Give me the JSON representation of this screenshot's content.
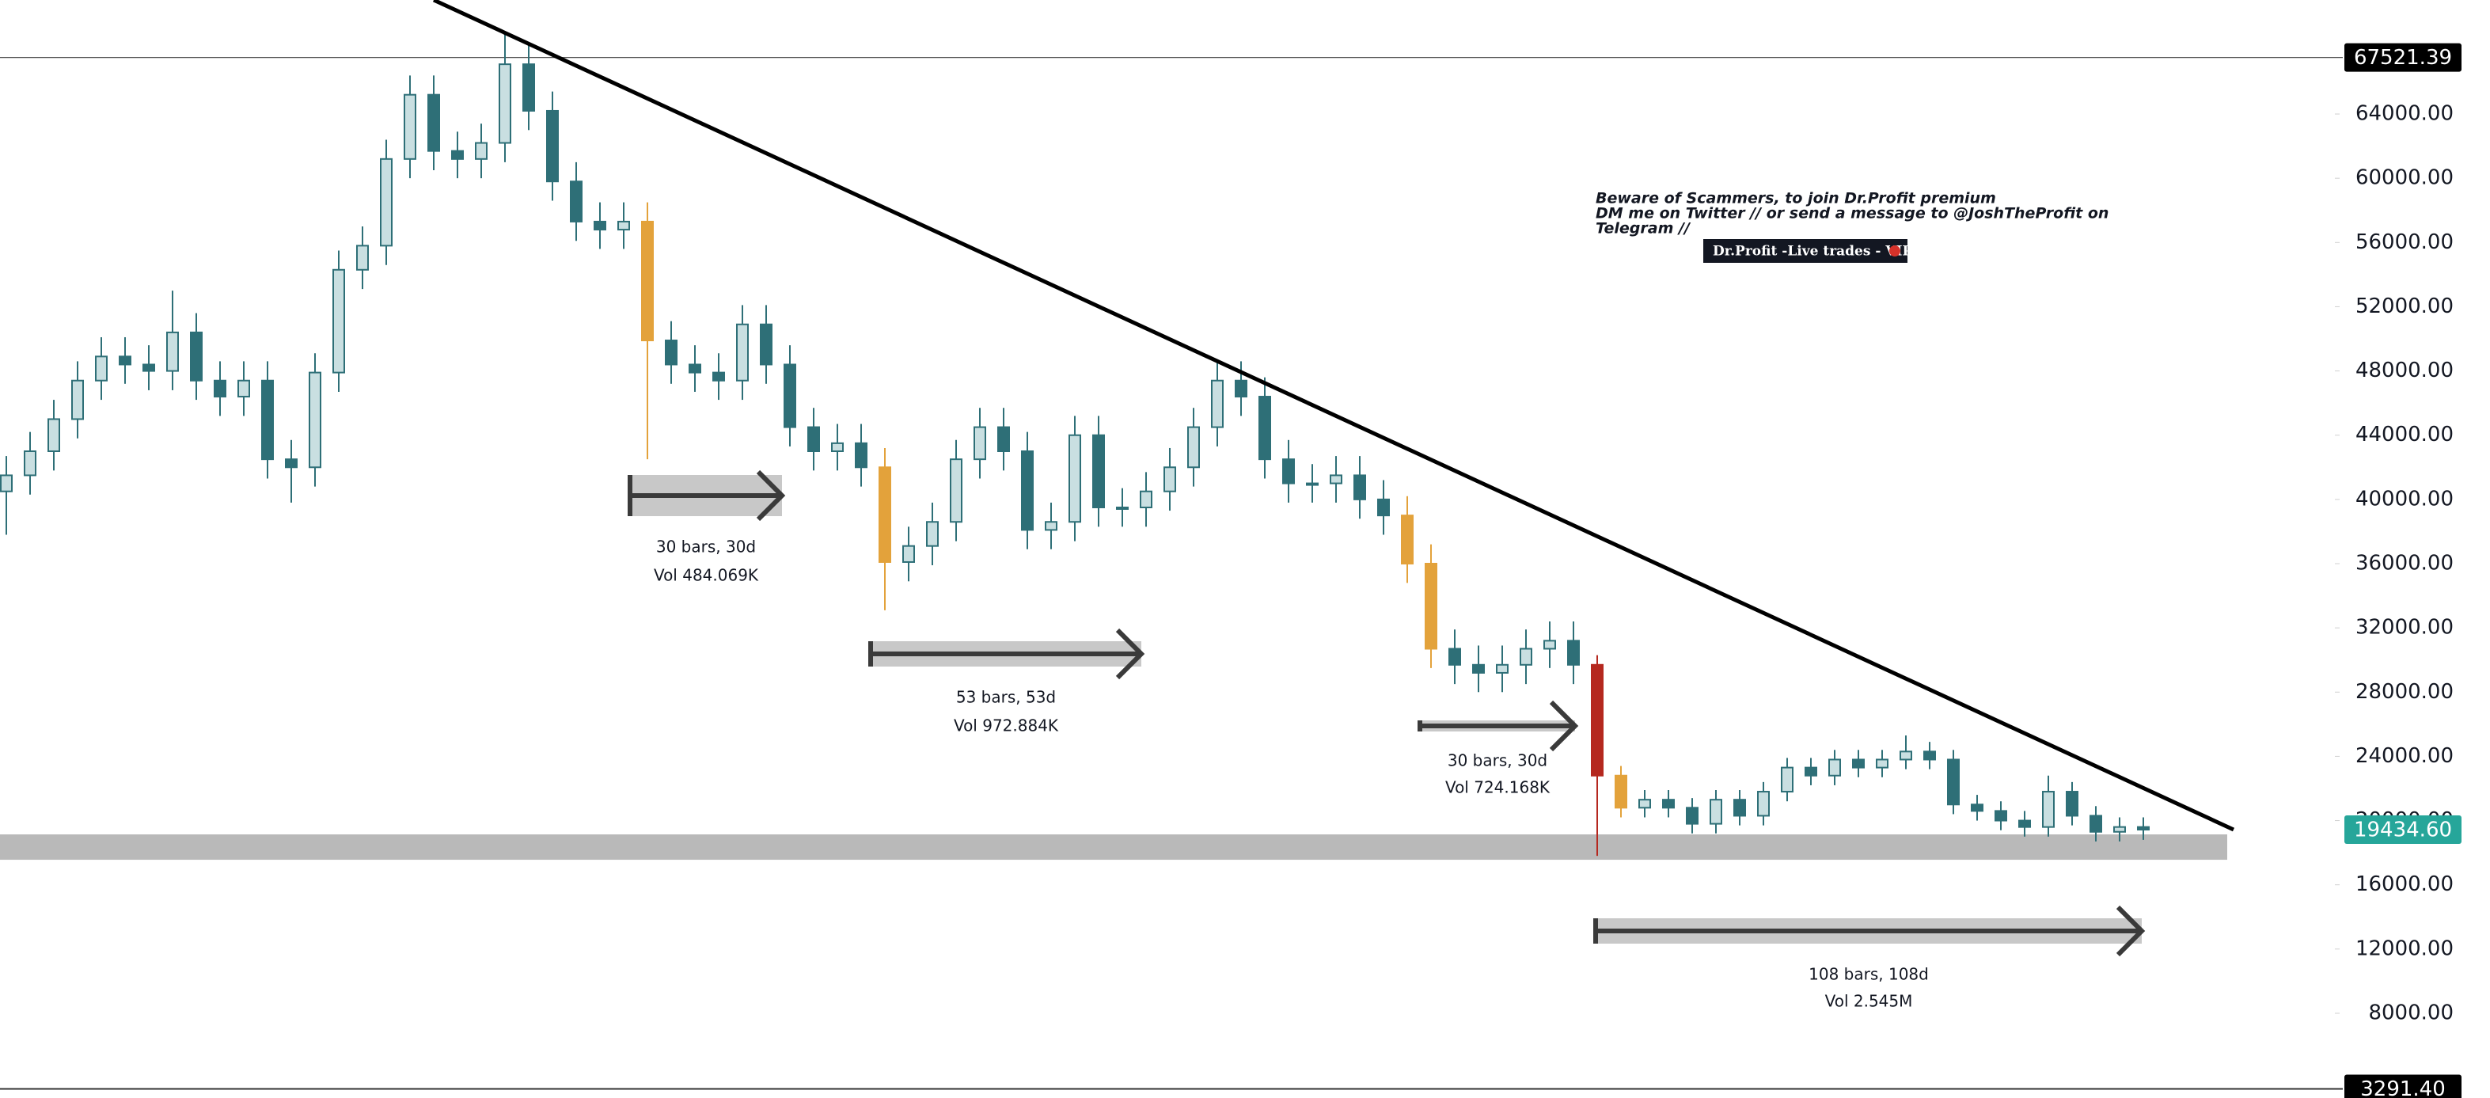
{
  "chart_data": {
    "type": "candlestick",
    "open": [
      40500,
      41500,
      43000,
      45000,
      47400,
      48900,
      48400,
      48000,
      50400,
      47400,
      46400,
      47400,
      42500,
      42000,
      47900,
      54300,
      55800,
      61200,
      65200,
      61700,
      61200,
      62200,
      67100,
      64200,
      59800,
      57300,
      56800,
      57300,
      49900,
      48400,
      47900,
      47400,
      50900,
      48400,
      44500,
      43000,
      43500,
      42000,
      36100,
      37100,
      38600,
      42500,
      44500,
      43000,
      38100,
      38600,
      44000,
      39500,
      39500,
      40500,
      42000,
      44500,
      47400,
      46400,
      42500,
      41000,
      41000,
      41500,
      40000,
      39000,
      36000,
      30700,
      29700,
      29200,
      29700,
      30700,
      31200,
      29700,
      22800,
      20800,
      21300,
      20800,
      19800,
      21300,
      20300,
      21800,
      23300,
      22800,
      23800,
      23300,
      23800,
      24300,
      23800,
      21000,
      20600,
      20000,
      19600,
      21800,
      20300,
      19300,
      19600
    ],
    "high": [
      42700,
      44200,
      46200,
      48600,
      50100,
      50100,
      49600,
      53000,
      51600,
      48600,
      48600,
      48600,
      43700,
      49100,
      55500,
      57000,
      62400,
      66400,
      66400,
      62900,
      63400,
      69000,
      68300,
      65400,
      61000,
      58500,
      58500,
      58500,
      51100,
      49600,
      49100,
      52100,
      52100,
      49600,
      45700,
      44700,
      44700,
      43200,
      38300,
      39800,
      43700,
      45700,
      45700,
      44200,
      39800,
      45200,
      45200,
      40700,
      41700,
      43200,
      45700,
      48600,
      48600,
      47600,
      43700,
      42200,
      42700,
      42700,
      41200,
      40200,
      37200,
      31900,
      30900,
      30900,
      31900,
      32400,
      32400,
      30300,
      23400,
      21900,
      21900,
      21400,
      21900,
      21900,
      22400,
      23900,
      23900,
      24400,
      24400,
      24400,
      25300,
      24900,
      24400,
      21600,
      21200,
      20600,
      22800,
      22400,
      20900,
      20200,
      20200
    ],
    "low": [
      37800,
      40300,
      41800,
      43800,
      46200,
      47200,
      46800,
      46800,
      46200,
      45200,
      45200,
      41300,
      39800,
      40800,
      46700,
      53100,
      54600,
      60000,
      60500,
      60000,
      60000,
      61000,
      63000,
      58600,
      56100,
      55600,
      55600,
      42500,
      47200,
      46700,
      46200,
      46200,
      47200,
      43300,
      41800,
      41800,
      40800,
      33100,
      34900,
      35900,
      37400,
      41300,
      41800,
      36900,
      36900,
      37400,
      38300,
      38300,
      38300,
      39300,
      40800,
      43300,
      45200,
      41300,
      39800,
      39800,
      39800,
      38800,
      37800,
      34800,
      29500,
      28500,
      28000,
      28000,
      28500,
      29500,
      28500,
      17800,
      20200,
      20200,
      20200,
      19200,
      19200,
      19700,
      19700,
      21200,
      22200,
      22200,
      22700,
      22700,
      23200,
      23200,
      20400,
      20000,
      19400,
      19000,
      19000,
      19700,
      18700,
      18700,
      18800
    ],
    "close": [
      41500,
      43000,
      45000,
      47400,
      48900,
      48400,
      48000,
      50400,
      47400,
      46400,
      47400,
      42500,
      42000,
      47900,
      54300,
      55800,
      61200,
      65200,
      61700,
      61200,
      62200,
      67100,
      64200,
      59800,
      57300,
      56800,
      57300,
      49900,
      48400,
      47900,
      47400,
      50900,
      48400,
      44500,
      43000,
      43500,
      42000,
      36100,
      37100,
      38600,
      42500,
      44500,
      43000,
      38100,
      38600,
      44000,
      39500,
      39500,
      40500,
      42000,
      44500,
      47400,
      46400,
      42500,
      41000,
      41000,
      41500,
      40000,
      39000,
      36000,
      30700,
      29700,
      29200,
      29700,
      30700,
      31200,
      29700,
      22800,
      20800,
      21300,
      20800,
      19800,
      21300,
      20300,
      21800,
      23300,
      22800,
      23800,
      23300,
      23800,
      24300,
      23800,
      21000,
      20600,
      20000,
      19600,
      21800,
      20300,
      19300,
      19600,
      19434.6
    ],
    "up_color": "#c9dfe1",
    "down_color": "#2e6f77",
    "highlights": [
      {
        "index": 27,
        "color": "#e3a23b"
      },
      {
        "index": 37,
        "color": "#e3a23b"
      },
      {
        "index": 59,
        "color": "#e3a23b"
      },
      {
        "index": 60,
        "color": "#e3a23b"
      },
      {
        "index": 67,
        "color": "#b5281f"
      },
      {
        "index": 68,
        "color": "#e3a23b"
      }
    ],
    "ylim": [
      2970,
      71100
    ],
    "yticks": [
      {
        "value": 64000,
        "label": "64000.00"
      },
      {
        "value": 60000,
        "label": "60000.00"
      },
      {
        "value": 56000,
        "label": "56000.00"
      },
      {
        "value": 52000,
        "label": "52000.00"
      },
      {
        "value": 48000,
        "label": "48000.00"
      },
      {
        "value": 44000,
        "label": "44000.00"
      },
      {
        "value": 40000,
        "label": "40000.00"
      },
      {
        "value": 36000,
        "label": "36000.00"
      },
      {
        "value": 32000,
        "label": "32000.00"
      },
      {
        "value": 28000,
        "label": "28000.00"
      },
      {
        "value": 24000,
        "label": "24000.00"
      },
      {
        "value": 20000,
        "label": "20000.00"
      },
      {
        "value": 16000,
        "label": "16000.00"
      },
      {
        "value": 12000,
        "label": "12000.00"
      },
      {
        "value": 8000,
        "label": "8000.00"
      }
    ],
    "grid": false,
    "price_line": {
      "value": 67521.39
    },
    "last_price": {
      "value": 19434.6,
      "label": "19434.60",
      "color": "#26a69a"
    },
    "crosshair": {
      "value": 3291.4,
      "label": "3291.40"
    },
    "zone": [
      17560,
      19140
    ],
    "zone_color": "#b5b5b5",
    "trendline": [
      [
        18,
        71100
      ],
      [
        93.8,
        19436
      ]
    ],
    "measures": [
      {
        "bars": "30 bars, 30d",
        "volume": "Vol 484.069K"
      },
      {
        "bars": "53 bars, 53d",
        "volume": "Vol 972.884K"
      },
      {
        "bars": "30 bars, 30d",
        "volume": "Vol 724.168K"
      },
      {
        "bars": "108 bars, 108d",
        "volume": "Vol 2.545M"
      }
    ],
    "note": [
      "Beware of Scammers, to join Dr.Profit premium",
      "DM me on Twitter // or send a message to @JoshTheProfit on",
      "Telegram //"
    ],
    "button": "Dr.Profit -Live trades - VIP"
  }
}
